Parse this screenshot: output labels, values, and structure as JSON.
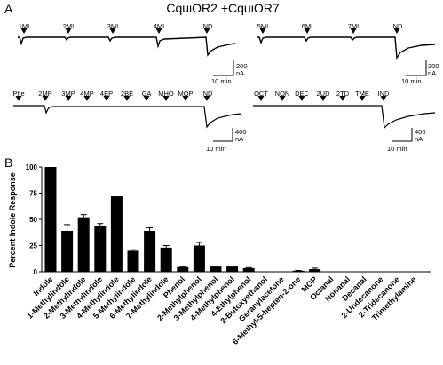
{
  "title": "CquiOR2 +CquiOR7",
  "panel_a_label": "A",
  "panel_b_label": "B",
  "traces": [
    {
      "odors": [
        "1MI",
        "2MI",
        "3MI",
        "4MI",
        "IND"
      ],
      "scale_current": "200",
      "scale_unit": "nA",
      "scale_time": "10 min"
    },
    {
      "odors": [
        "5MI",
        "6MI",
        "7MI",
        "IND"
      ],
      "scale_current": "200",
      "scale_unit": "nA",
      "scale_time": "10 min"
    },
    {
      "odors": [
        "Phe",
        "2MP",
        "3MP",
        "4MP",
        "4EP",
        "2BE",
        "GA",
        "MHO",
        "MOP",
        "IND"
      ],
      "scale_current": "400",
      "scale_unit": "nA",
      "scale_time": "10 min"
    },
    {
      "odors": [
        "OCT",
        "NON",
        "DEC",
        "2UD",
        "2TD",
        "TME",
        "IND"
      ],
      "scale_current": "400",
      "scale_unit": "nA",
      "scale_time": "10 min"
    }
  ],
  "chart_data": {
    "type": "bar",
    "ylabel": "Percent Indole Response",
    "ylim": [
      0,
      100
    ],
    "yticks": [
      "0",
      "25",
      "50",
      "75",
      "100"
    ],
    "categories": [
      "Indole",
      "1-Methylindole",
      "2-Methylindole",
      "3-Methylindole",
      "4-Methylindole",
      "5-Methylindole",
      "6-Methylindole",
      "7-Methylindole",
      "Phenol",
      "2-Methylphenol",
      "3-Methylphenol",
      "4-Methylphenol",
      "4-Ethylphenol",
      "2-Butoxyethanol",
      "Geranylacetone",
      "6-Methyl-5-hepten-2-one",
      "MOP",
      "Octanal",
      "Nonanal",
      "Decanal",
      "2-Undecanone",
      "2-Tridecanone",
      "Trimethylamine"
    ],
    "values": [
      100,
      39,
      52,
      44,
      72,
      20,
      39,
      23,
      4.5,
      25,
      5,
      5,
      3.5,
      0,
      0,
      1,
      2.5,
      0,
      0,
      0,
      0,
      0,
      0
    ],
    "errors": [
      0,
      6,
      2.5,
      2,
      0,
      1,
      3,
      2,
      0.5,
      3,
      0.5,
      0.5,
      0.5,
      0,
      0,
      0.3,
      1,
      0,
      0,
      0,
      0,
      0,
      0
    ],
    "grid": false,
    "colors": {
      "bar": "#000000"
    }
  }
}
